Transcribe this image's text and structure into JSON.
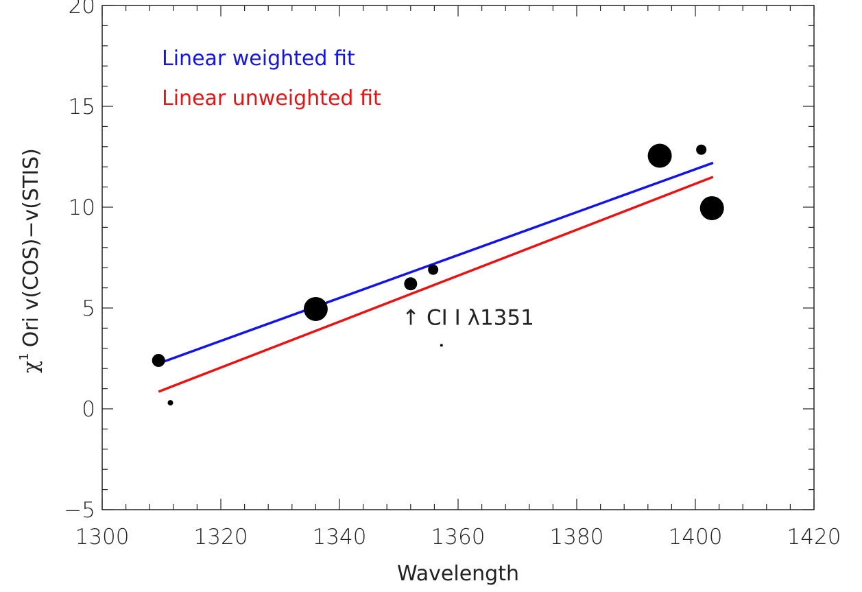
{
  "chart_data": {
    "type": "scatter",
    "xlabel": "Wavelength",
    "ylabel_symbol": "χ",
    "ylabel_superscript": "1",
    "ylabel": "Ori v(COS)−v(STIS)",
    "xlim": [
      1300,
      1420
    ],
    "ylim": [
      -5,
      20
    ],
    "x_ticks": [
      1300,
      1320,
      1340,
      1360,
      1380,
      1400,
      1420
    ],
    "x_tick_labels": [
      "1300",
      "1320",
      "1340",
      "1360",
      "1380",
      "1400",
      "1420"
    ],
    "y_ticks": [
      -5,
      0,
      5,
      10,
      15,
      20
    ],
    "y_tick_labels": [
      "−5",
      "0",
      "5",
      "10",
      "15",
      "20"
    ],
    "grid": false,
    "points": [
      {
        "x": 1309.5,
        "y": 2.4,
        "weight": "medium"
      },
      {
        "x": 1311.5,
        "y": 0.3,
        "weight": "tiny"
      },
      {
        "x": 1336.0,
        "y": 4.95,
        "weight": "large"
      },
      {
        "x": 1352.0,
        "y": 6.2,
        "weight": "medium"
      },
      {
        "x": 1355.8,
        "y": 6.9,
        "weight": "small"
      },
      {
        "x": 1357.2,
        "y": 3.15,
        "weight": "dot"
      },
      {
        "x": 1394.0,
        "y": 12.55,
        "weight": "large"
      },
      {
        "x": 1401.0,
        "y": 12.85,
        "weight": "small"
      },
      {
        "x": 1402.8,
        "y": 9.95,
        "weight": "large"
      }
    ],
    "series": [
      {
        "name": "Linear weighted fit",
        "color": "#1414e6",
        "x": [
          1309.5,
          1403.0
        ],
        "y": [
          2.25,
          12.2
        ]
      },
      {
        "name": "Linear unweighted fit",
        "color": "#e61414",
        "x": [
          1309.5,
          1403.0
        ],
        "y": [
          0.85,
          11.5
        ]
      }
    ],
    "legend_placement": "top-left",
    "annotation": {
      "text": "↑ CI I λ1351",
      "x": 1351,
      "y": 4.1
    }
  }
}
